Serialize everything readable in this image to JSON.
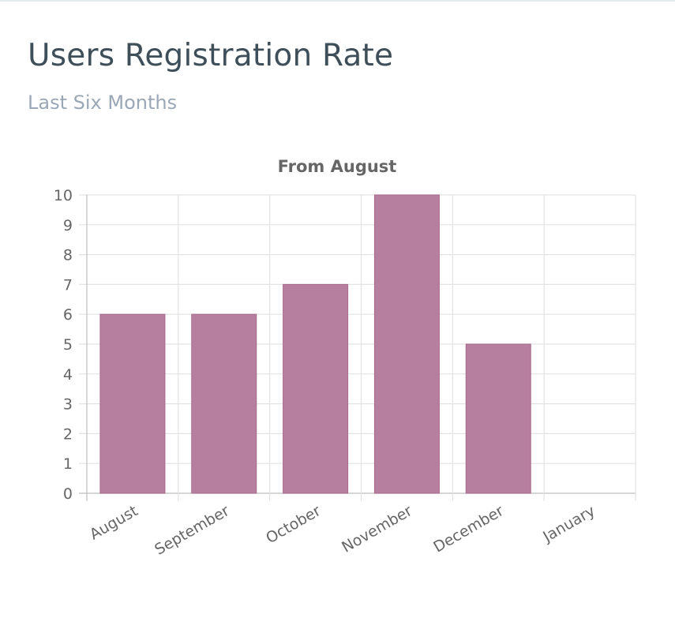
{
  "card": {
    "title": "Users Registration Rate",
    "subtitle": "Last Six Months"
  },
  "colors": {
    "bar_fill": "#b77f9f",
    "bar_stroke": "#a86a8d",
    "grid": "#e3e3e3",
    "axis_text": "#666666",
    "title_text": "#666666"
  },
  "chart_data": {
    "type": "bar",
    "title": "From August",
    "categories": [
      "August",
      "September",
      "October",
      "November",
      "December",
      "January"
    ],
    "values": [
      6,
      6,
      7,
      10,
      5,
      0
    ],
    "ylim": [
      0,
      10
    ],
    "yticks": [
      0,
      1,
      2,
      3,
      4,
      5,
      6,
      7,
      8,
      9,
      10
    ],
    "xlabel": "",
    "ylabel": "",
    "grid": true,
    "legend": "none"
  }
}
